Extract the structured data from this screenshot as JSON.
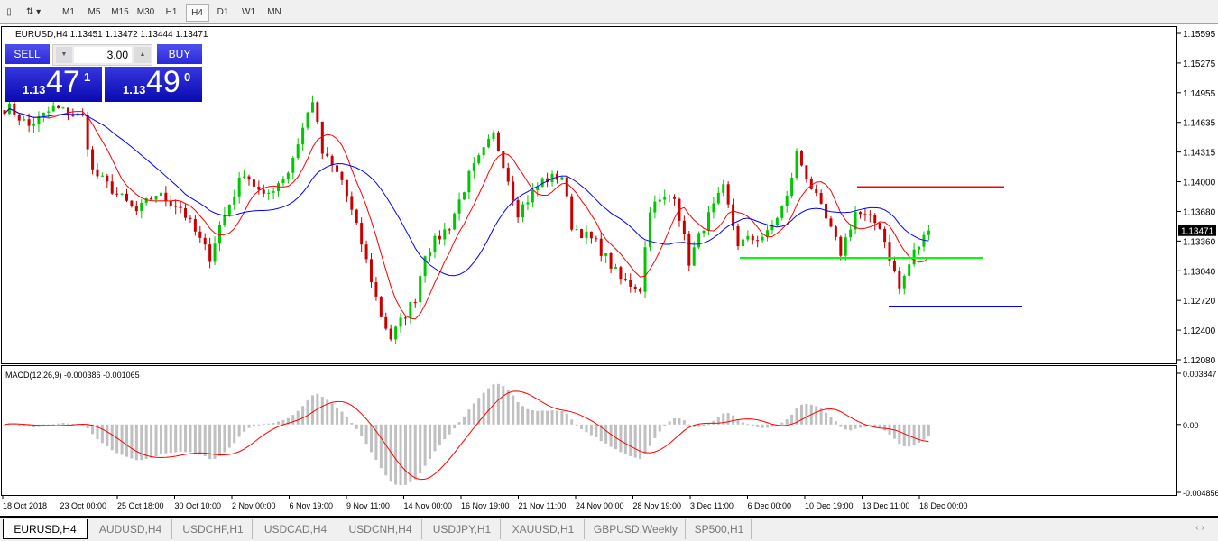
{
  "toolbar": {
    "timeframes": [
      "M1",
      "M5",
      "M15",
      "M30",
      "H1",
      "H4",
      "D1",
      "W1",
      "MN"
    ],
    "active": "H4"
  },
  "chart": {
    "symbol_info": "EURUSD,H4  1.13451 1.13472 1.13444 1.13471",
    "current_price": "1.13471",
    "price_axis": [
      "1.15595",
      "1.15275",
      "1.14955",
      "1.14635",
      "1.14315",
      "1.14000",
      "1.13680",
      "1.13360",
      "1.13040",
      "1.12720",
      "1.12400",
      "1.12080"
    ],
    "price_range": [
      1.1208,
      1.15595
    ],
    "time_axis": [
      "18 Oct 2018",
      "23 Oct 00:00",
      "25 Oct 18:00",
      "30 Oct 10:00",
      "2 Nov 00:00",
      "6 Nov 19:00",
      "9 Nov 11:00",
      "14 Nov 00:00",
      "16 Nov 19:00",
      "21 Nov 11:00",
      "24 Nov 00:00",
      "28 Nov 19:00",
      "3 Dec 11:00",
      "6 Dec 00:00",
      "10 Dec 19:00",
      "13 Dec 11:00",
      "18 Dec 00:00"
    ],
    "price_path_bars": [
      1,
      5,
      10,
      16,
      18,
      27,
      31,
      36,
      42,
      44,
      49,
      53,
      58,
      63,
      65,
      69,
      73,
      77,
      79,
      84,
      86,
      91,
      95,
      100,
      102,
      105,
      110,
      114,
      116,
      121,
      126,
      130,
      132,
      137,
      140,
      143,
      147,
      150,
      156,
      160,
      162,
      166,
      171,
      174,
      179,
      183,
      186,
      189
    ],
    "price_path": [
      1.14789,
      1.14595,
      1.14789,
      1.14692,
      1.14109,
      1.13672,
      1.13867,
      1.13721,
      1.13187,
      1.13527,
      1.14109,
      1.13818,
      1.14109,
      1.14886,
      1.14304,
      1.14012,
      1.13333,
      1.12556,
      1.12313,
      1.1275,
      1.13236,
      1.13527,
      1.14061,
      1.14498,
      1.14206,
      1.13672,
      1.14012,
      1.14061,
      1.13527,
      1.13333,
      1.12944,
      1.12847,
      1.13721,
      1.13867,
      1.13138,
      1.13527,
      1.13916,
      1.13333,
      1.1343,
      1.13818,
      1.14304,
      1.13818,
      1.13236,
      1.13672,
      1.13527,
      1.12847,
      1.13236,
      1.13471
    ],
    "moving_averages": [
      {
        "color": "#ff0000"
      },
      {
        "color": "#0000ff"
      }
    ],
    "horizontal_lines": [
      {
        "price": 1.1394,
        "color": "#ff0000"
      },
      {
        "price": 1.13177,
        "color": "#00ff00"
      },
      {
        "price": 1.12653,
        "color": "#0000ff"
      }
    ],
    "bull_color": "#00c800",
    "bear_color": "#c80000"
  },
  "trade_panel": {
    "sell_label": "SELL",
    "buy_label": "BUY",
    "lot": "3.00",
    "sell_prefix": "1.13",
    "sell_big": "47",
    "sell_sup": "1",
    "buy_prefix": "1.13",
    "buy_big": "49",
    "buy_sup": "0"
  },
  "macd": {
    "label": "MACD(12,26,9) -0.000386 -0.001065",
    "axis": [
      "0.003847",
      "0.00",
      "-0.004856"
    ],
    "range": [
      -0.004856,
      0.003847
    ],
    "histogram_color": "#c0c0c0",
    "signal_color": "#ff0000"
  },
  "tabs": [
    "EURUSD,H4",
    "AUDUSD,H4",
    "USDCHF,H1",
    "USDCAD,H4",
    "USDCNH,H4",
    "USDJPY,H1",
    "XAUUSD,H1",
    "GBPUSD,Weekly",
    "SP500,H1"
  ],
  "active_tab": "EURUSD,H4"
}
